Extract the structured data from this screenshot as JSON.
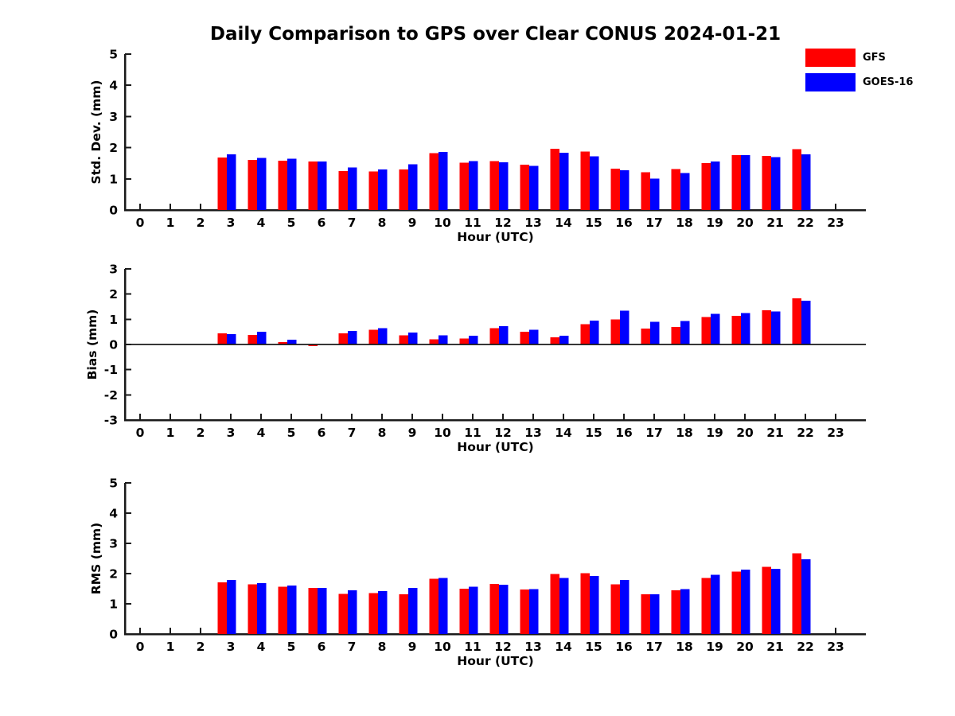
{
  "title": "Daily Comparison to GPS over Clear CONUS 2024-01-21",
  "colors": {
    "gfs": "#ff0000",
    "goes16": "#0000ff",
    "axis": "#1a1a1a",
    "background": "#ffffff"
  },
  "legend": {
    "position": "top-right",
    "items": [
      {
        "label": "GFS",
        "color": "#ff0000"
      },
      {
        "label": "GOES-16",
        "color": "#0000ff"
      }
    ]
  },
  "chart_data": [
    {
      "type": "bar",
      "panel": "std-dev",
      "ylabel": "Std. Dev. (mm)",
      "xlabel": "Hour (UTC)",
      "x": [
        0,
        1,
        2,
        3,
        4,
        5,
        6,
        7,
        8,
        9,
        10,
        11,
        12,
        13,
        14,
        15,
        16,
        17,
        18,
        19,
        20,
        21,
        22,
        23
      ],
      "xlim": [
        -0.5,
        24
      ],
      "ylim": [
        0,
        5
      ],
      "yticks": [
        0,
        1,
        2,
        3,
        4,
        5
      ],
      "grid": false,
      "zero_line": false,
      "series": [
        {
          "name": "GFS",
          "color": "#ff0000",
          "values": [
            null,
            null,
            null,
            1.69,
            1.61,
            1.58,
            1.56,
            1.25,
            1.24,
            1.3,
            1.83,
            1.52,
            1.57,
            1.45,
            1.97,
            1.87,
            1.33,
            1.21,
            1.31,
            1.5,
            1.76,
            1.73,
            1.95,
            null
          ]
        },
        {
          "name": "GOES-16",
          "color": "#0000ff",
          "values": [
            null,
            null,
            null,
            1.79,
            1.67,
            1.64,
            1.55,
            1.37,
            1.3,
            1.47,
            1.86,
            1.57,
            1.53,
            1.42,
            1.84,
            1.72,
            1.27,
            1.01,
            1.19,
            1.55,
            1.76,
            1.7,
            1.79,
            null
          ]
        }
      ]
    },
    {
      "type": "bar",
      "panel": "bias",
      "ylabel": "Bias (mm)",
      "xlabel": "Hour (UTC)",
      "x": [
        0,
        1,
        2,
        3,
        4,
        5,
        6,
        7,
        8,
        9,
        10,
        11,
        12,
        13,
        14,
        15,
        16,
        17,
        18,
        19,
        20,
        21,
        22,
        23
      ],
      "xlim": [
        -0.5,
        24
      ],
      "ylim": [
        -3,
        3
      ],
      "yticks": [
        -3,
        -2,
        -1,
        0,
        1,
        2,
        3
      ],
      "grid": false,
      "zero_line": true,
      "series": [
        {
          "name": "GFS",
          "color": "#ff0000",
          "values": [
            null,
            null,
            null,
            0.45,
            0.38,
            0.09,
            -0.07,
            0.45,
            0.59,
            0.37,
            0.2,
            0.24,
            0.65,
            0.51,
            0.28,
            0.81,
            0.99,
            0.63,
            0.69,
            1.09,
            1.13,
            1.36,
            1.83,
            null
          ]
        },
        {
          "name": "GOES-16",
          "color": "#0000ff",
          "values": [
            null,
            null,
            null,
            0.41,
            0.5,
            0.19,
            0.0,
            0.54,
            0.65,
            0.48,
            0.37,
            0.34,
            0.72,
            0.59,
            0.35,
            0.94,
            1.35,
            0.9,
            0.93,
            1.21,
            1.24,
            1.31,
            1.73,
            null
          ]
        }
      ]
    },
    {
      "type": "bar",
      "panel": "rms",
      "ylabel": "RMS (mm)",
      "xlabel": "Hour (UTC)",
      "x": [
        0,
        1,
        2,
        3,
        4,
        5,
        6,
        7,
        8,
        9,
        10,
        11,
        12,
        13,
        14,
        15,
        16,
        17,
        18,
        19,
        20,
        21,
        22,
        23
      ],
      "xlim": [
        -0.5,
        24
      ],
      "ylim": [
        0,
        5
      ],
      "yticks": [
        0,
        1,
        2,
        3,
        4,
        5
      ],
      "grid": false,
      "zero_line": false,
      "series": [
        {
          "name": "GFS",
          "color": "#ff0000",
          "values": [
            null,
            null,
            null,
            1.71,
            1.64,
            1.57,
            1.53,
            1.33,
            1.35,
            1.32,
            1.83,
            1.5,
            1.66,
            1.48,
            1.99,
            2.01,
            1.64,
            1.32,
            1.45,
            1.85,
            2.06,
            2.22,
            2.67,
            null
          ]
        },
        {
          "name": "GOES-16",
          "color": "#0000ff",
          "values": [
            null,
            null,
            null,
            1.79,
            1.69,
            1.61,
            1.53,
            1.45,
            1.42,
            1.53,
            1.86,
            1.56,
            1.63,
            1.49,
            1.85,
            1.92,
            1.79,
            1.32,
            1.49,
            1.96,
            2.13,
            2.16,
            2.48,
            null
          ]
        }
      ]
    }
  ]
}
